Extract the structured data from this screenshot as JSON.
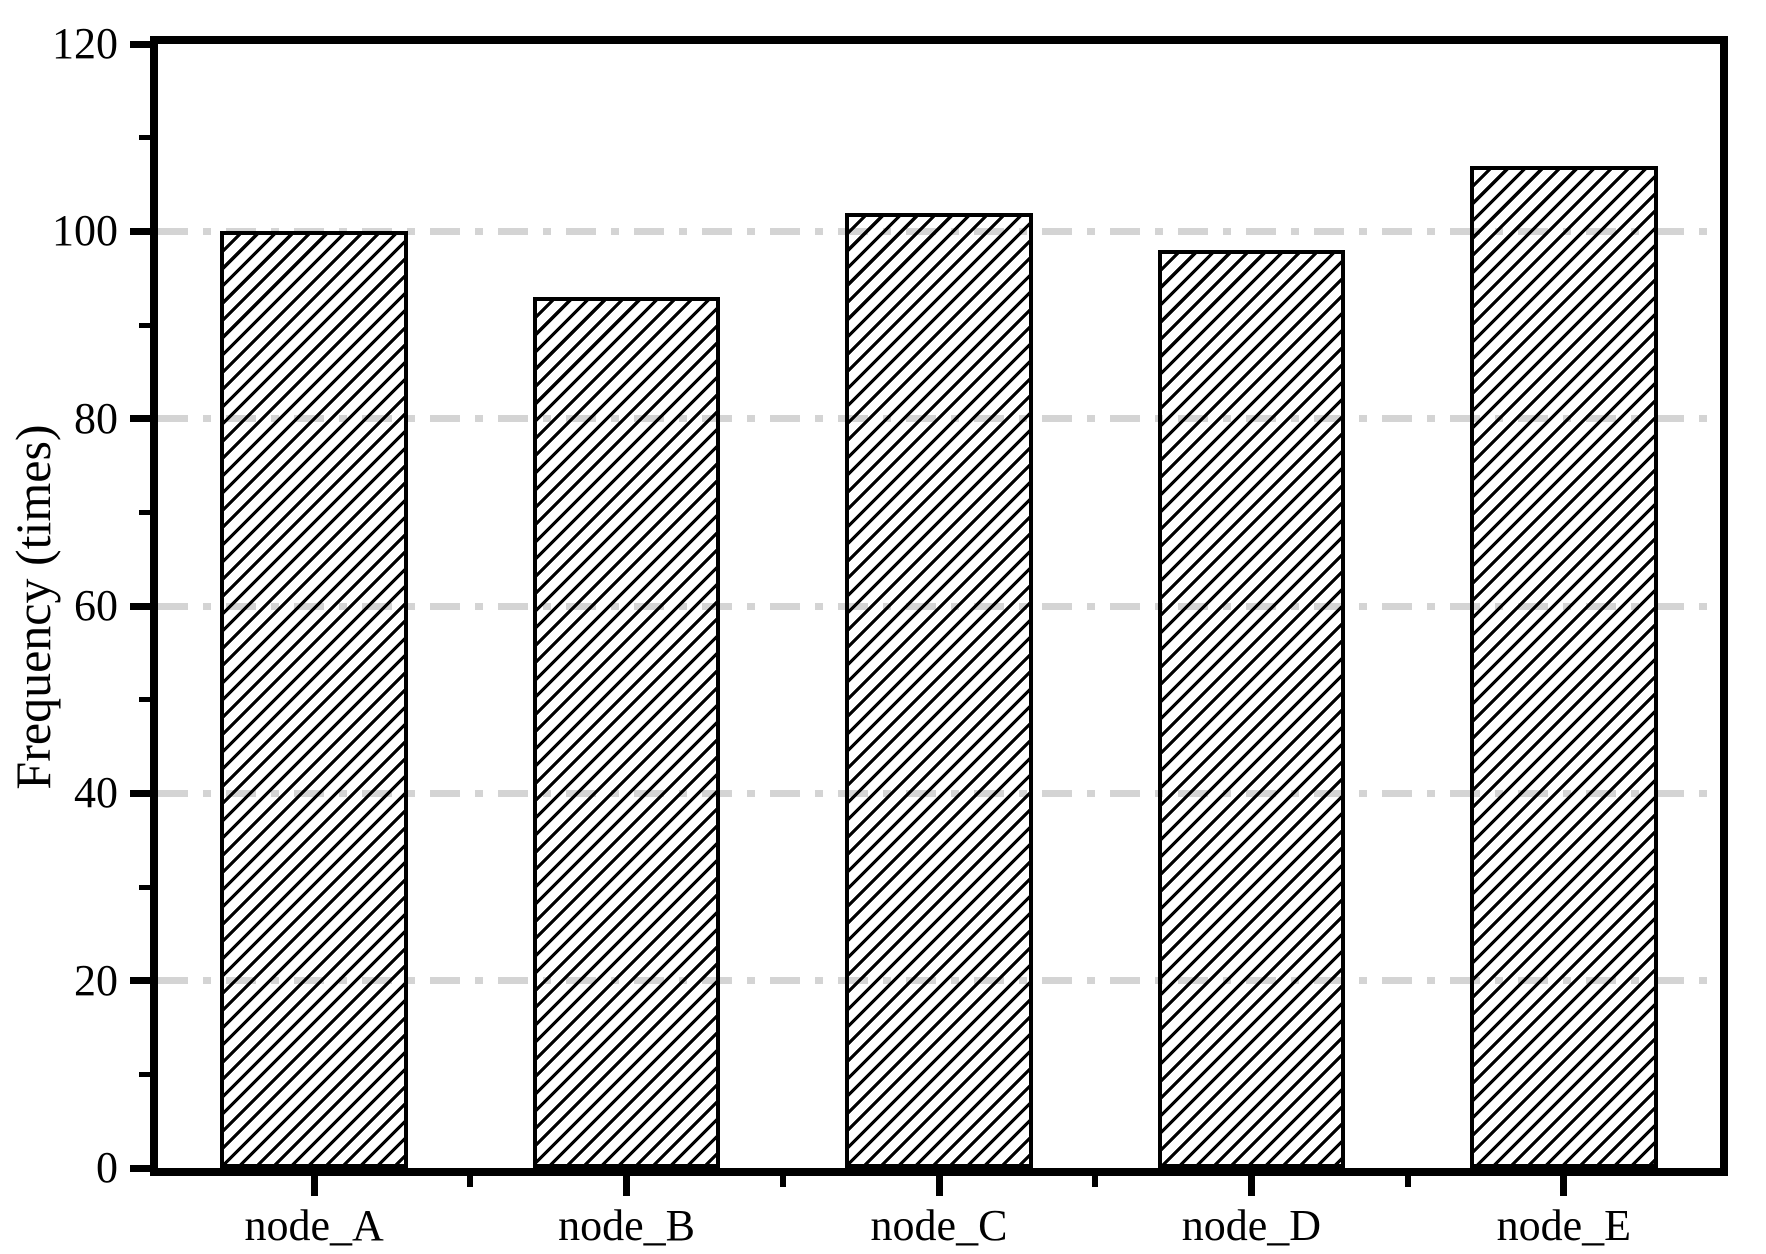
{
  "figure": {
    "background_color": "#ffffff",
    "frame_color": "#000000",
    "text_color": "#000000"
  },
  "chart_data": {
    "type": "bar",
    "title": "",
    "xlabel": "",
    "ylabel": "Frequency (times)",
    "categories": [
      "node_A",
      "node_B",
      "node_C",
      "node_D",
      "node_E"
    ],
    "values": [
      100,
      93,
      102,
      98,
      107
    ],
    "ylim": [
      0,
      120
    ],
    "yticks": [
      0,
      20,
      40,
      60,
      80,
      100,
      120
    ],
    "ytick_labels": [
      "0",
      "20",
      "40",
      "60",
      "80",
      "100",
      "120"
    ],
    "minor_yticks": [
      10,
      30,
      50,
      70,
      90,
      110
    ],
    "gridlines_at": [
      20,
      40,
      60,
      80,
      100
    ],
    "grid_style": "dash-dot",
    "grid_color": "#d4d4d4",
    "grid_on": true,
    "legend": null,
    "bar_fill": "transparent",
    "bar_hatch": "forward-diagonal",
    "bar_edge_color": "#000000",
    "bar_width_fraction": 0.6
  }
}
